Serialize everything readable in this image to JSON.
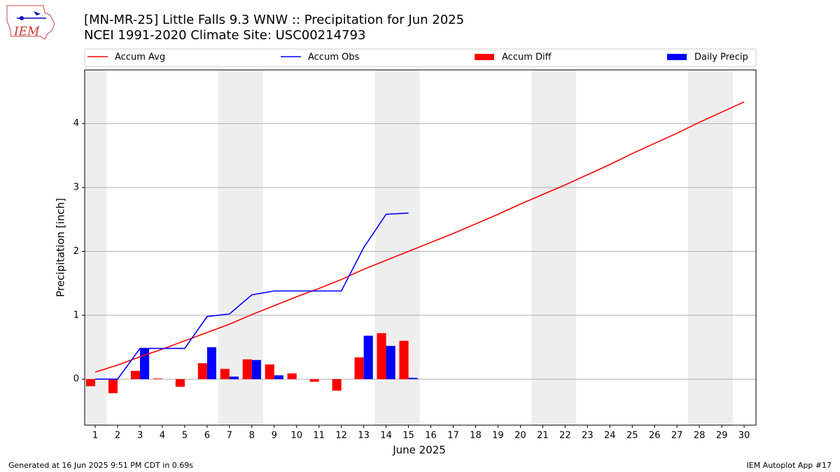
{
  "chart_data": {
    "type": "line",
    "title": "[MN-MR-25] Little Falls 9.3 WNW :: Precipitation for Jun 2025",
    "subtitle": "NCEI 1991-2020 Climate Site: USC00214793",
    "x_label": "June 2025",
    "y_label": "Precipitation [inch]",
    "footer_left": "Generated at 16 Jun 2025 9:51 PM CDT in 0.69s",
    "footer_right": "IEM Autoplot App #17",
    "logo_text": "IEM",
    "x": [
      1,
      2,
      3,
      4,
      5,
      6,
      7,
      8,
      9,
      10,
      11,
      12,
      13,
      14,
      15,
      16,
      17,
      18,
      19,
      20,
      21,
      22,
      23,
      24,
      25,
      26,
      27,
      28,
      29,
      30
    ],
    "xlim": [
      0.53,
      30.53
    ],
    "xticks": [
      1,
      2,
      3,
      4,
      5,
      6,
      7,
      8,
      9,
      10,
      11,
      12,
      13,
      14,
      15,
      16,
      17,
      18,
      19,
      20,
      21,
      22,
      23,
      24,
      25,
      26,
      27,
      28,
      29,
      30
    ],
    "ylim": [
      -0.72,
      4.84
    ],
    "yticks": [
      0,
      1,
      2,
      3,
      4
    ],
    "grid": true,
    "legend": "top",
    "series": [
      {
        "name": "Accum Avg",
        "type": "line",
        "color": "#ff0000",
        "values": [
          0.11,
          0.22,
          0.35,
          0.47,
          0.6,
          0.73,
          0.86,
          1.01,
          1.15,
          1.29,
          1.42,
          1.56,
          1.72,
          1.86,
          2.0,
          2.14,
          2.28,
          2.43,
          2.58,
          2.74,
          2.89,
          3.04,
          3.2,
          3.36,
          3.53,
          3.69,
          3.85,
          4.02,
          4.18,
          4.34
        ]
      },
      {
        "name": "Accum Obs",
        "type": "line",
        "color": "#0000ff",
        "values": [
          0,
          0,
          0.48,
          0.48,
          0.48,
          0.98,
          1.02,
          1.32,
          1.38,
          1.38,
          1.38,
          1.38,
          2.06,
          2.58,
          2.6,
          null,
          null,
          null,
          null,
          null,
          null,
          null,
          null,
          null,
          null,
          null,
          null,
          null,
          null,
          null
        ]
      },
      {
        "name": "Accum Diff",
        "type": "bar",
        "color": "#ff0000",
        "values": [
          -0.11,
          -0.22,
          0.13,
          0.01,
          -0.12,
          0.25,
          0.16,
          0.31,
          0.23,
          0.09,
          -0.04,
          -0.18,
          0.34,
          0.72,
          0.6,
          null,
          null,
          null,
          null,
          null,
          null,
          null,
          null,
          null,
          null,
          null,
          null,
          null,
          null,
          null
        ]
      },
      {
        "name": "Daily Precip",
        "type": "bar",
        "color": "#0000ff",
        "values": [
          0,
          0,
          0.48,
          0,
          0,
          0.5,
          0.04,
          0.3,
          0.06,
          0,
          0,
          0,
          0.68,
          0.52,
          0.02,
          null,
          null,
          null,
          null,
          null,
          null,
          null,
          null,
          null,
          null,
          null,
          null,
          null,
          null,
          null
        ]
      }
    ]
  }
}
